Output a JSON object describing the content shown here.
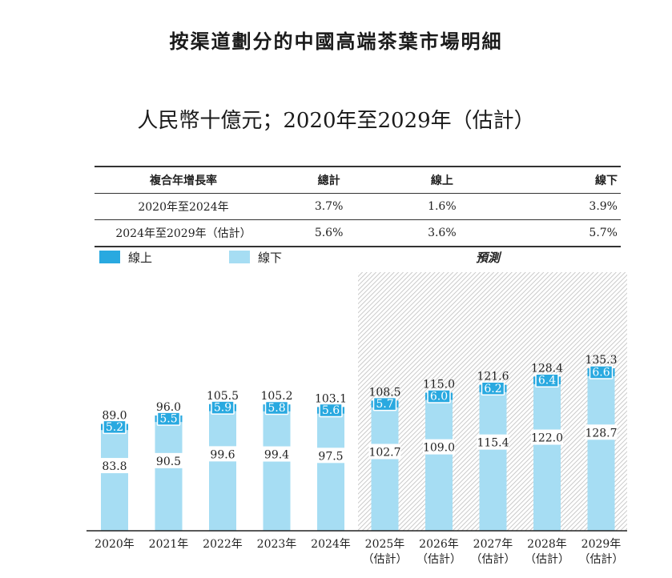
{
  "header": {
    "title": "按渠道劃分的中國高端茶葉市場明細",
    "subtitle": "人民幣十億元；2020年至2029年（估計）"
  },
  "cagr_table": {
    "headers": [
      "複合年增長率",
      "總計",
      "線上",
      "線下"
    ],
    "rows": [
      [
        "2020年至2024年",
        "3.7%",
        "1.6%",
        "3.9%"
      ],
      [
        "2024年至2029年（估計）",
        "5.6%",
        "3.6%",
        "5.7%"
      ]
    ]
  },
  "legend": {
    "online": "線上",
    "offline": "線下",
    "forecast": "預測"
  },
  "colors": {
    "online": "#29a9e0",
    "offline": "#a6ddf3",
    "forecast_bg": "#d9d9d9"
  },
  "chart_data": {
    "type": "bar",
    "stacked": true,
    "categories": [
      "2020年",
      "2021年",
      "2022年",
      "2023年",
      "2024年",
      "2025年",
      "2026年",
      "2027年",
      "2028年",
      "2029年"
    ],
    "category_notes": [
      "",
      "",
      "",
      "",
      "",
      "（估計）",
      "（估計）",
      "（估計）",
      "（估計）",
      "（估計）"
    ],
    "series": [
      {
        "name": "線下",
        "values": [
          83.8,
          90.5,
          99.6,
          99.4,
          97.5,
          102.7,
          109.0,
          115.4,
          122.0,
          128.7
        ]
      },
      {
        "name": "線上",
        "values": [
          5.2,
          5.5,
          5.9,
          5.8,
          5.6,
          5.7,
          6.0,
          6.2,
          6.4,
          6.6
        ]
      }
    ],
    "totals": [
      "89.0",
      "96.0",
      "105.5",
      "105.2",
      "103.1",
      "108.5",
      "115.0",
      "121.6",
      "128.4",
      "135.3"
    ],
    "offline_labels": [
      "83.8",
      "90.5",
      "99.6",
      "99.4",
      "97.5",
      "102.7",
      "109.0",
      "115.4",
      "122.0",
      "128.7"
    ],
    "online_labels": [
      "5.2",
      "5.5",
      "5.9",
      "5.8",
      "5.6",
      "5.7",
      "6.0",
      "6.2",
      "6.4",
      "6.6"
    ],
    "forecast_start_index": 5,
    "unit": "人民幣十億元"
  }
}
